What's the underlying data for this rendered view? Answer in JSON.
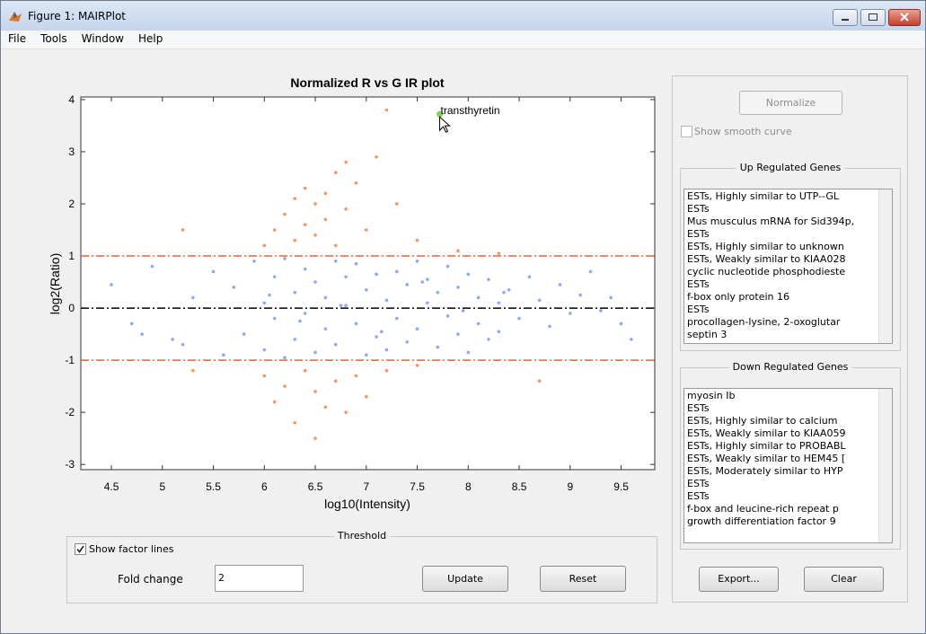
{
  "window": {
    "title": "Figure 1: MAIRPlot"
  },
  "menu": [
    "File",
    "Tools",
    "Window",
    "Help"
  ],
  "chart_data": {
    "type": "scatter",
    "title": "Normalized R vs G IR plot",
    "x_label": "log10(Intensity)",
    "y_label": "log2(Ratio)",
    "xlim": [
      4.2,
      9.83
    ],
    "ylim": [
      -3.1,
      4.05
    ],
    "xticks": [
      4.5,
      5,
      5.5,
      6,
      6.5,
      7,
      7.5,
      8,
      8.5,
      9,
      9.5
    ],
    "yticks": [
      -3,
      -2,
      -1,
      0,
      1,
      2,
      3,
      4
    ],
    "hlines": [
      {
        "value": 1,
        "color": "#e8642c"
      },
      {
        "value": -1,
        "color": "#e8642c"
      },
      {
        "value": 0,
        "color": "#000000"
      }
    ],
    "annotation": {
      "text": "transthyretin",
      "x": 7.72,
      "y": 3.72,
      "color": "#7fd45a"
    },
    "series": [
      {
        "color": "#8ea8f7",
        "x": [
          4.5,
          4.7,
          4.9,
          5.1,
          5.3,
          5.5,
          5.6,
          5.7,
          5.8,
          5.9,
          6.0,
          6.0,
          6.1,
          6.1,
          6.2,
          6.2,
          6.3,
          6.3,
          6.4,
          6.4,
          6.5,
          6.5,
          6.6,
          6.6,
          6.7,
          6.7,
          6.8,
          6.8,
          6.9,
          6.9,
          7.0,
          7.0,
          7.1,
          7.1,
          7.2,
          7.2,
          7.3,
          7.3,
          7.4,
          7.4,
          7.5,
          7.5,
          7.6,
          7.6,
          7.7,
          7.7,
          7.8,
          7.8,
          7.9,
          7.9,
          8.0,
          8.0,
          8.1,
          8.1,
          8.2,
          8.2,
          8.3,
          8.3,
          8.4,
          8.5,
          8.6,
          8.7,
          8.8,
          8.9,
          9.0,
          9.1,
          9.2,
          9.3,
          9.4,
          9.5,
          9.6,
          5.2,
          4.8,
          6.05,
          6.35,
          6.75,
          7.15,
          7.55,
          7.95,
          8.35
        ],
        "values": [
          0.45,
          -0.3,
          0.8,
          -0.6,
          0.2,
          0.7,
          -0.9,
          0.4,
          -0.5,
          0.9,
          0.1,
          -0.8,
          0.6,
          -0.2,
          0.95,
          -0.95,
          0.3,
          -0.6,
          0.75,
          -0.1,
          0.5,
          -0.85,
          0.2,
          -0.4,
          0.9,
          -0.7,
          0.05,
          0.6,
          -0.3,
          0.85,
          -0.9,
          0.35,
          0.65,
          -0.55,
          0.15,
          -0.8,
          0.7,
          -0.2,
          0.45,
          -0.65,
          0.9,
          -0.4,
          0.1,
          0.55,
          -0.75,
          0.3,
          0.8,
          -0.15,
          -0.5,
          0.4,
          0.65,
          -0.85,
          0.2,
          -0.3,
          0.55,
          -0.6,
          0.1,
          -0.45,
          0.35,
          -0.2,
          0.6,
          0.15,
          -0.35,
          0.45,
          -0.1,
          0.25,
          0.7,
          -0.05,
          0.2,
          -0.3,
          -0.6,
          -0.7,
          -0.5,
          0.25,
          -0.25,
          0.05,
          -0.45,
          0.5,
          -0.05,
          0.3
        ]
      },
      {
        "color": "#f7935c",
        "x": [
          6.0,
          6.1,
          6.2,
          6.3,
          6.3,
          6.4,
          6.4,
          6.5,
          6.5,
          6.6,
          6.6,
          6.7,
          6.7,
          6.8,
          6.8,
          6.9,
          7.0,
          7.1,
          7.2,
          7.3,
          7.5,
          7.9,
          8.3,
          5.2,
          6.0,
          6.1,
          6.2,
          6.3,
          6.4,
          6.5,
          6.5,
          6.6,
          6.7,
          6.8,
          6.9,
          7.0,
          7.2,
          7.5,
          8.7,
          5.3
        ],
        "values": [
          1.2,
          1.5,
          1.8,
          1.3,
          2.1,
          1.6,
          2.3,
          1.4,
          2.0,
          1.7,
          2.2,
          1.2,
          2.6,
          1.9,
          2.8,
          2.4,
          1.5,
          2.9,
          3.8,
          2.0,
          1.3,
          1.1,
          1.05,
          1.5,
          -1.3,
          -1.8,
          -1.5,
          -2.2,
          -1.2,
          -1.6,
          -2.5,
          -1.9,
          -1.4,
          -2.0,
          -1.3,
          -1.7,
          -1.2,
          -1.1,
          -1.4,
          -1.2
        ]
      }
    ]
  },
  "controls": {
    "normalize": "Normalize",
    "smooth_curve": {
      "label": "Show smooth curve",
      "checked": false
    },
    "up_genes": {
      "title": "Up Regulated Genes",
      "items": [
        "ESTs, Highly similar to UTP--GL",
        "ESTs",
        "Mus musculus mRNA for Sid394p,",
        "ESTs",
        "ESTs, Highly similar to unknown",
        "ESTs, Weakly similar to KIAA028",
        "cyclic nucleotide phosphodieste",
        "ESTs",
        "f-box only protein 16",
        "ESTs",
        "procollagen-lysine, 2-oxoglutar",
        "septin 3"
      ]
    },
    "down_genes": {
      "title": "Down Regulated Genes",
      "items": [
        "myosin Ib",
        "ESTs",
        "ESTs, Highly similar to calcium",
        "ESTs, Weakly similar to KIAA059",
        "ESTs, Highly similar to PROBABL",
        "ESTs, Weakly similar to HEM45 [",
        "ESTs, Moderately similar to HYP",
        "ESTs",
        "ESTs",
        "f-box and leucine-rich repeat p",
        "growth differentiation factor 9"
      ]
    },
    "threshold": {
      "title": "Threshold",
      "show_factor_lines": {
        "label": "Show factor lines",
        "checked": true
      },
      "fold_change_label": "Fold change",
      "fold_change_value": "2",
      "update": "Update",
      "reset": "Reset"
    },
    "export": "Export...",
    "clear": "Clear"
  }
}
